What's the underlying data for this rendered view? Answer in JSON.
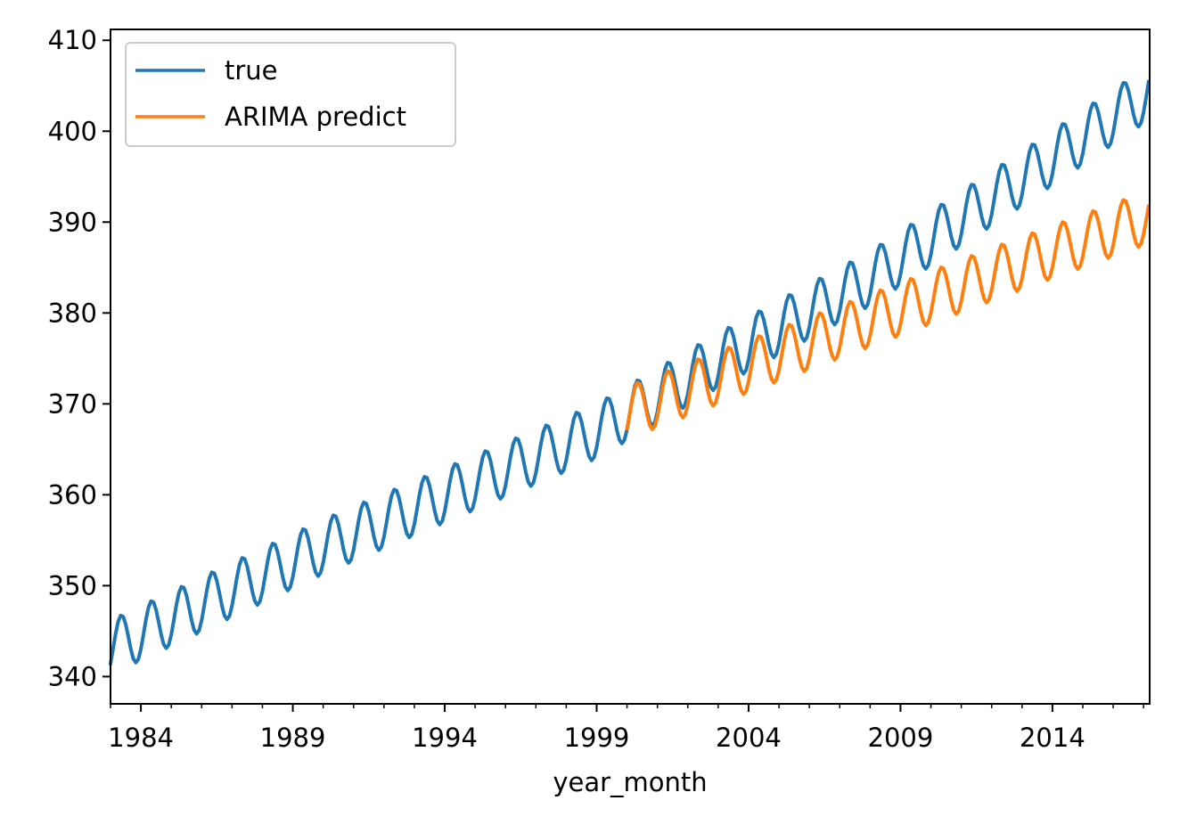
{
  "chart_data": {
    "type": "line",
    "title": "",
    "xlabel": "year_month",
    "ylabel": "",
    "xlim": [
      1983.0,
      2017.2
    ],
    "ylim": [
      337.0,
      411.2
    ],
    "grid": false,
    "legend_position": "top-left",
    "x_ticks": [
      1984,
      1989,
      1994,
      1999,
      2004,
      2009,
      2014
    ],
    "x_tick_labels": [
      "1984",
      "1989",
      "1994",
      "1999",
      "2004",
      "2009",
      "2014"
    ],
    "y_ticks": [
      340,
      350,
      360,
      370,
      380,
      390,
      400,
      410
    ],
    "y_tick_labels": [
      "340",
      "350",
      "360",
      "370",
      "380",
      "390",
      "400",
      "410"
    ],
    "series": [
      {
        "name": "true",
        "color": "#1f77b4",
        "start_year": 1983.0,
        "end_year": 2017.2,
        "seasonal_amplitude": 3.0,
        "peak_fraction_of_year": 0.35,
        "trend_points": [
          [
            1983.0,
            343.2
          ],
          [
            1990.0,
            354.3
          ],
          [
            1999.0,
            367.0
          ],
          [
            2003.0,
            374.8
          ],
          [
            2008.0,
            383.8
          ],
          [
            2013.0,
            394.8
          ],
          [
            2017.2,
            404.3
          ]
        ]
      },
      {
        "name": "ARIMA predict",
        "color": "#ff7f0e",
        "start_year": 2000.0,
        "end_year": 2017.2,
        "seasonal_amplitude": 2.9,
        "peak_fraction_of_year": 0.35,
        "trend_points": [
          [
            2000.0,
            369.0
          ],
          [
            2003.0,
            372.9
          ],
          [
            2008.0,
            379.2
          ],
          [
            2013.0,
            385.5
          ],
          [
            2017.2,
            390.6
          ]
        ]
      }
    ]
  }
}
